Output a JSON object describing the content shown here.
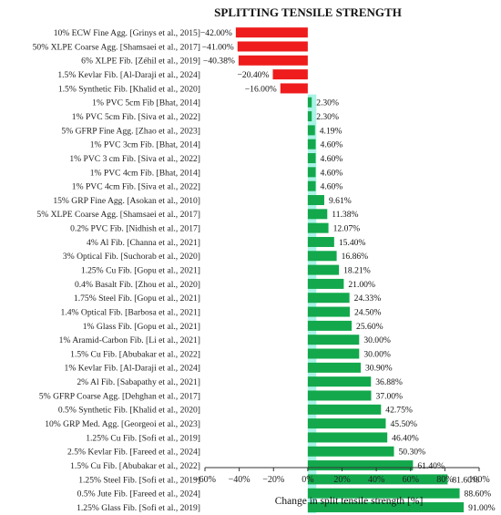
{
  "chart_data": {
    "type": "bar",
    "orientation": "horizontal",
    "title": "SPLITTING TENSILE STRENGTH",
    "xlabel": "Change in split tensile strength [%]",
    "ylabel": "",
    "xlim": [
      -60,
      100
    ],
    "ticks": [
      -60,
      -40,
      -20,
      0,
      20,
      40,
      60,
      80,
      100
    ],
    "tick_labels": [
      "−60%",
      "−40%",
      "−20%",
      "0%",
      "20%",
      "40%",
      "60%",
      "80%",
      "100%"
    ],
    "grid": false,
    "legend": "none",
    "colors": {
      "negative": "#ee1c1c",
      "positive": "#13a84c",
      "highlight": "#aaf3e6",
      "text": "#111111"
    },
    "categories": [
      "10% ECW Fine Agg. [Grinys et al., 2015]",
      "50% XLPE Coarse Agg. [Shamsaei et al., 2017]",
      "6% XLPE Fib. [Zéhil et al., 2019]",
      "1.5% Kevlar Fib. [Al-Daraji et al., 2024]",
      "1.5% Synthetic Fib. [Khalid et al., 2020]",
      "1% PVC 5cm Fib [Bhat, 2014]",
      "1% PVC 5cm Fib. [Siva et al., 2022]",
      "5% GFRP Fine Agg. [Zhao et al., 2023]",
      "1% PVC 3cm Fib. [Bhat, 2014]",
      "1% PVC 3 cm Fib. [Siva et al., 2022]",
      "1% PVC 4cm Fib. [Bhat, 2014]",
      "1% PVC 4cm Fib. [Siva et al., 2022]",
      "15% GRP Fine Agg. [Asokan et al., 2010]",
      "5% XLPE Coarse Agg. [Shamsaei et al., 2017]",
      "0.2% PVC Fib. [Nidhish et al., 2017]",
      "4% Al Fib. [Channa et al., 2021]",
      "3% Optical Fib. [Suchorab et al., 2020]",
      "1.25% Cu Fib. [Gopu et al., 2021]",
      "0.4% Basalt Fib. [Zhou et al., 2020]",
      "1.75% Steel Fib. [Gopu et al., 2021]",
      "1.4% Optical Fib. [Barbosa et al., 2021]",
      "1% Glass Fib. [Gopu et al., 2021]",
      "1% Aramid-Carbon Fib. [Li et al., 2021]",
      "1.5% Cu Fib. [Abubakar et al., 2022]",
      "1% Kevlar Fib. [Al-Daraji et al., 2024]",
      "2% Al Fib. [Sabapathy et al., 2021]",
      "5% GFRP Coarse Agg. [Dehghan et al., 2017]",
      "0.5% Synthetic Fib. [Khalid et al., 2020]",
      "10% GRP Med. Agg. [Georgeoi et al., 2023]",
      "1.25% Cu Fib. [Sofi et al., 2019]",
      "2.5% Kevlar Fib. [Fareed et al., 2024]",
      "1.5% Cu Fib. [Abubakar et al., 2022]",
      "1.25% Steel Fib. [Sofi et al., 2019]",
      "0.5% Jute Fib. [Fareed et al., 2024]",
      "1.25% Glass Fib. [Sofi et al., 2019]"
    ],
    "values": [
      -42.0,
      -41.0,
      -40.38,
      -20.4,
      -16.0,
      2.3,
      2.3,
      4.19,
      4.6,
      4.6,
      4.6,
      4.6,
      9.61,
      11.38,
      12.07,
      15.4,
      16.86,
      18.21,
      21.0,
      24.33,
      24.5,
      25.6,
      30.0,
      30.0,
      30.9,
      36.88,
      37.0,
      42.75,
      45.5,
      46.4,
      50.3,
      61.4,
      81.6,
      88.6,
      91.0
    ],
    "value_labels": [
      "−42.00%",
      "−41.00%",
      "−40.38%",
      "−20.40%",
      "−16.00%",
      "2.30%",
      "2.30%",
      "4.19%",
      "4.60%",
      "4.60%",
      "4.60%",
      "4.60%",
      "9.61%",
      "11.38%",
      "12.07%",
      "15.40%",
      "16.86%",
      "18.21%",
      "21.00%",
      "24.33%",
      "24.50%",
      "25.60%",
      "30.00%",
      "30.00%",
      "30.90%",
      "36.88%",
      "37.00%",
      "42.75%",
      "45.50%",
      "46.40%",
      "50.30%",
      "61.40%",
      "81.60%",
      "88.60%",
      "91.00%"
    ],
    "highlight_band": [
      0,
      5
    ]
  }
}
